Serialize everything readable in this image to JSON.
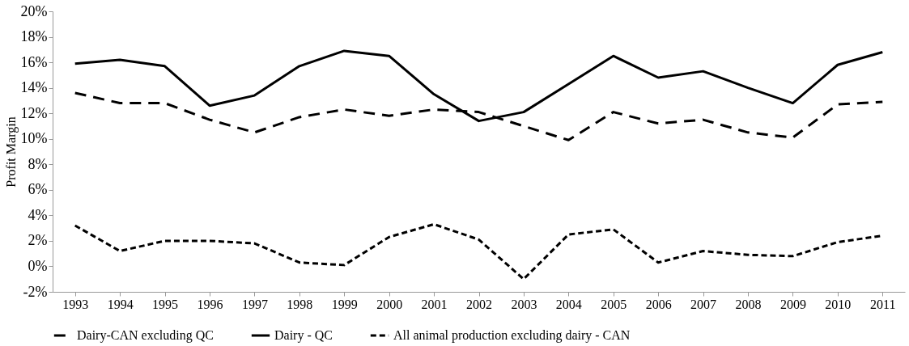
{
  "chart_data": {
    "type": "line",
    "ylabel": "Profit Margin",
    "categories": [
      "1993",
      "1994",
      "1995",
      "1996",
      "1997",
      "1998",
      "1999",
      "2000",
      "2001",
      "2002",
      "2003",
      "2004",
      "2005",
      "2006",
      "2007",
      "2008",
      "2009",
      "2010",
      "2011"
    ],
    "series": [
      {
        "name": "Dairy-CAN excluding QC",
        "color": "#000000",
        "line_style": "dashed",
        "values": [
          13.6,
          12.8,
          12.8,
          11.5,
          10.5,
          11.7,
          12.3,
          11.8,
          12.3,
          12.1,
          11.0,
          9.9,
          12.1,
          11.2,
          11.5,
          10.5,
          10.1,
          12.7,
          12.9
        ]
      },
      {
        "name": "Dairy - QC",
        "color": "#000000",
        "line_style": "solid",
        "values": [
          15.9,
          16.2,
          15.7,
          12.6,
          13.4,
          15.7,
          16.9,
          16.5,
          13.5,
          11.4,
          12.1,
          14.3,
          16.5,
          14.8,
          15.3,
          14.0,
          12.8,
          15.8,
          16.8
        ]
      },
      {
        "name": "All animal production excluding dairy - CAN",
        "color": "#000000",
        "line_style": "dotted",
        "values": [
          3.2,
          1.2,
          2.0,
          2.0,
          1.8,
          0.3,
          0.1,
          2.3,
          3.3,
          2.1,
          -1.0,
          2.5,
          2.9,
          0.3,
          1.2,
          0.9,
          0.8,
          1.9,
          2.4
        ]
      }
    ],
    "ylim": [
      -2,
      20
    ],
    "yticks": [
      {
        "value": -2,
        "label": "-2%"
      },
      {
        "value": 0,
        "label": "0%"
      },
      {
        "value": 2,
        "label": "2%"
      },
      {
        "value": 4,
        "label": "4%"
      },
      {
        "value": 6,
        "label": "6%"
      },
      {
        "value": 8,
        "label": "8%"
      },
      {
        "value": 10,
        "label": "10%"
      },
      {
        "value": 12,
        "label": "12%"
      },
      {
        "value": 14,
        "label": "14%"
      },
      {
        "value": 16,
        "label": "16%"
      },
      {
        "value": 18,
        "label": "18%"
      },
      {
        "value": 20,
        "label": "20%"
      }
    ],
    "grid": false,
    "legend": "bottom"
  }
}
